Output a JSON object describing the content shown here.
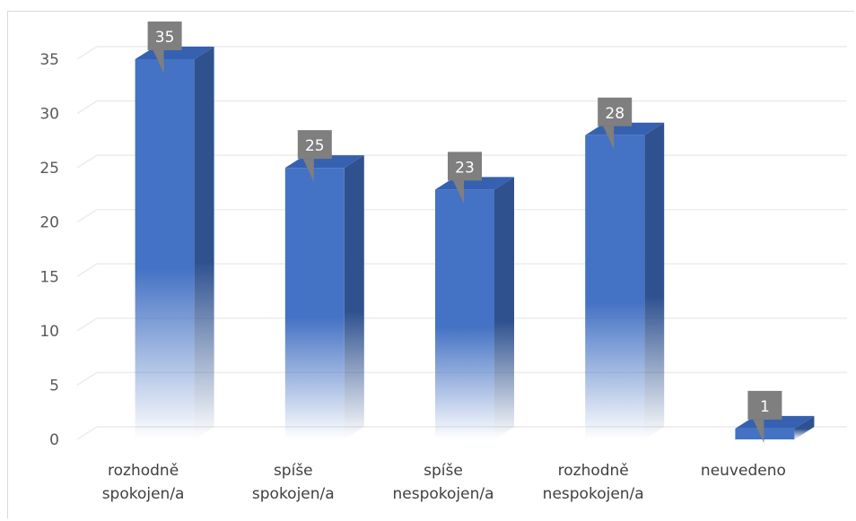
{
  "chart_data": {
    "type": "bar",
    "title": "",
    "xlabel": "",
    "ylabel": "",
    "categories": [
      [
        "rozhodně",
        "spokojen/a"
      ],
      [
        "spíše",
        "spokojen/a"
      ],
      [
        "spíše",
        "nespokojen/a"
      ],
      [
        "rozhodně",
        "nespokojen/a"
      ],
      [
        "neuvedeno"
      ]
    ],
    "values": [
      35,
      25,
      23,
      28,
      1
    ],
    "ylim": [
      0,
      35
    ],
    "yticks": [
      0,
      5,
      10,
      15,
      20,
      25,
      30,
      35
    ],
    "grid": true,
    "legend": "none",
    "data_labels": true,
    "colors": {
      "bar_front": "#4472c4",
      "bar_side": "#2f528f",
      "bar_top": "#3561b0",
      "label_bg": "#7f7f7f",
      "grid": "#ececec"
    }
  }
}
